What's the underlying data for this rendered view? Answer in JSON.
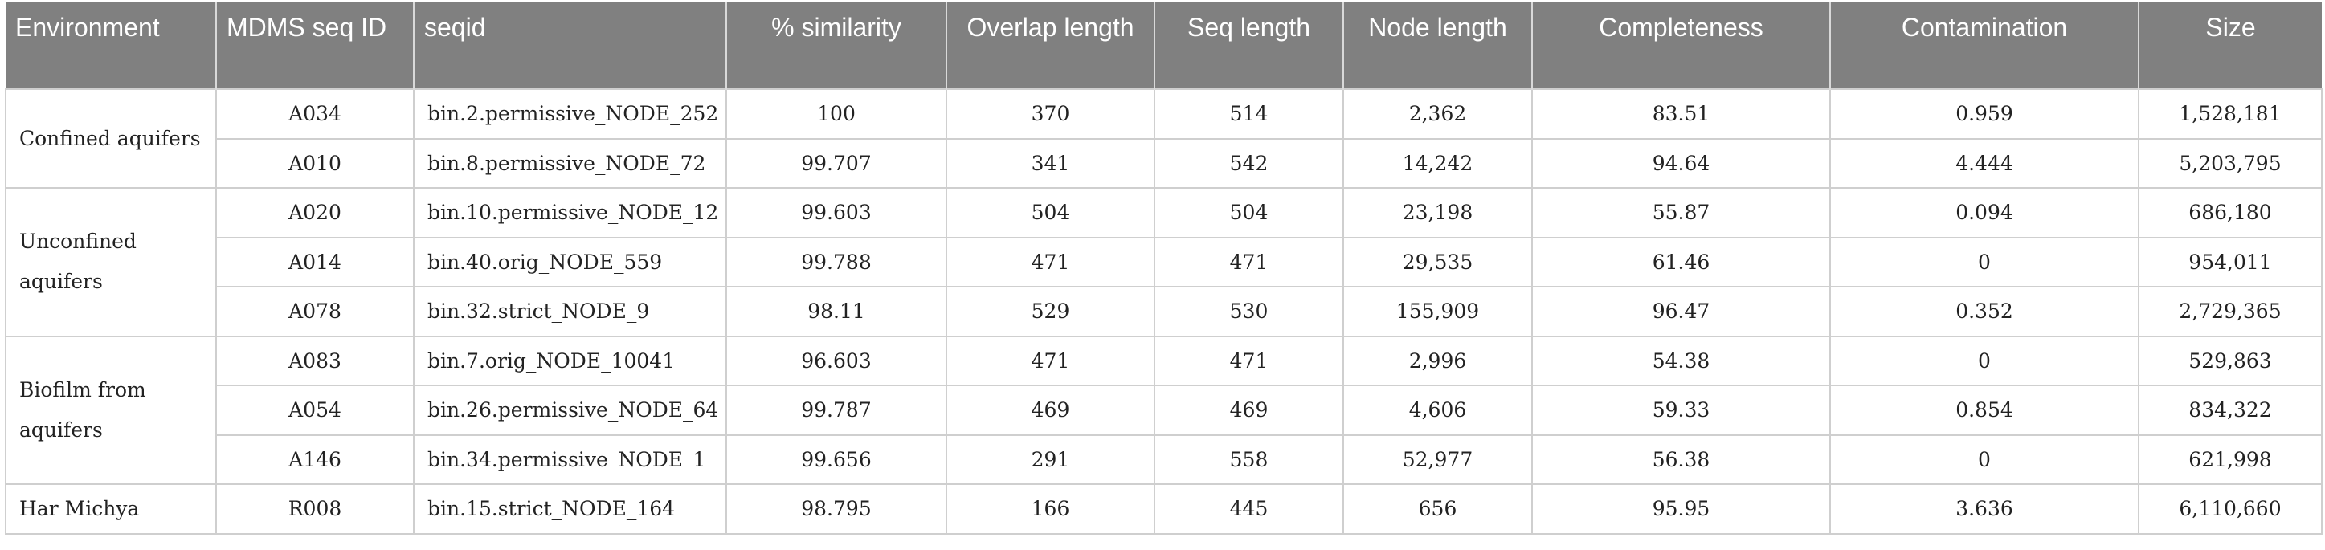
{
  "table": {
    "headers": [
      "Environment",
      "MDMS seq ID",
      "seqid",
      "% similarity",
      "Overlap length",
      "Seq length",
      "Node length",
      "Completeness",
      "Contamination",
      "Size"
    ],
    "groups": [
      {
        "environment": "Confined aquifers",
        "rows": [
          [
            "A034",
            "bin.2.permissive_NODE_252",
            "100",
            "370",
            "514",
            "2,362",
            "83.51",
            "0.959",
            "1,528,181"
          ],
          [
            "A010",
            "bin.8.permissive_NODE_72",
            "99.707",
            "341",
            "542",
            "14,242",
            "94.64",
            "4.444",
            "5,203,795"
          ]
        ]
      },
      {
        "environment": "Unconfined aquifers",
        "rows": [
          [
            "A020",
            "bin.10.permissive_NODE_12",
            "99.603",
            "504",
            "504",
            "23,198",
            "55.87",
            "0.094",
            "686,180"
          ],
          [
            "A014",
            "bin.40.orig_NODE_559",
            "99.788",
            "471",
            "471",
            "29,535",
            "61.46",
            "0",
            "954,011"
          ],
          [
            "A078",
            "bin.32.strict_NODE_9",
            "98.11",
            "529",
            "530",
            "155,909",
            "96.47",
            "0.352",
            "2,729,365"
          ]
        ]
      },
      {
        "environment": "Biofilm from aquifers",
        "rows": [
          [
            "A083",
            "bin.7.orig_NODE_10041",
            "96.603",
            "471",
            "471",
            "2,996",
            "54.38",
            "0",
            "529,863"
          ],
          [
            "A054",
            "bin.26.permissive_NODE_64",
            "99.787",
            "469",
            "469",
            "4,606",
            "59.33",
            "0.854",
            "834,322"
          ],
          [
            "A146",
            "bin.34.permissive_NODE_1",
            "99.656",
            "291",
            "558",
            "52,977",
            "56.38",
            "0",
            "621,998"
          ]
        ]
      },
      {
        "environment": "Har Michya",
        "rows": [
          [
            "R008",
            "bin.15.strict_NODE_164",
            "98.795",
            "166",
            "445",
            "656",
            "95.95",
            "3.636",
            "6,110,660"
          ]
        ]
      }
    ],
    "colors": {
      "header_bg": "#808080",
      "header_text": "#ffffff",
      "grid": "#cfcfcf"
    }
  }
}
